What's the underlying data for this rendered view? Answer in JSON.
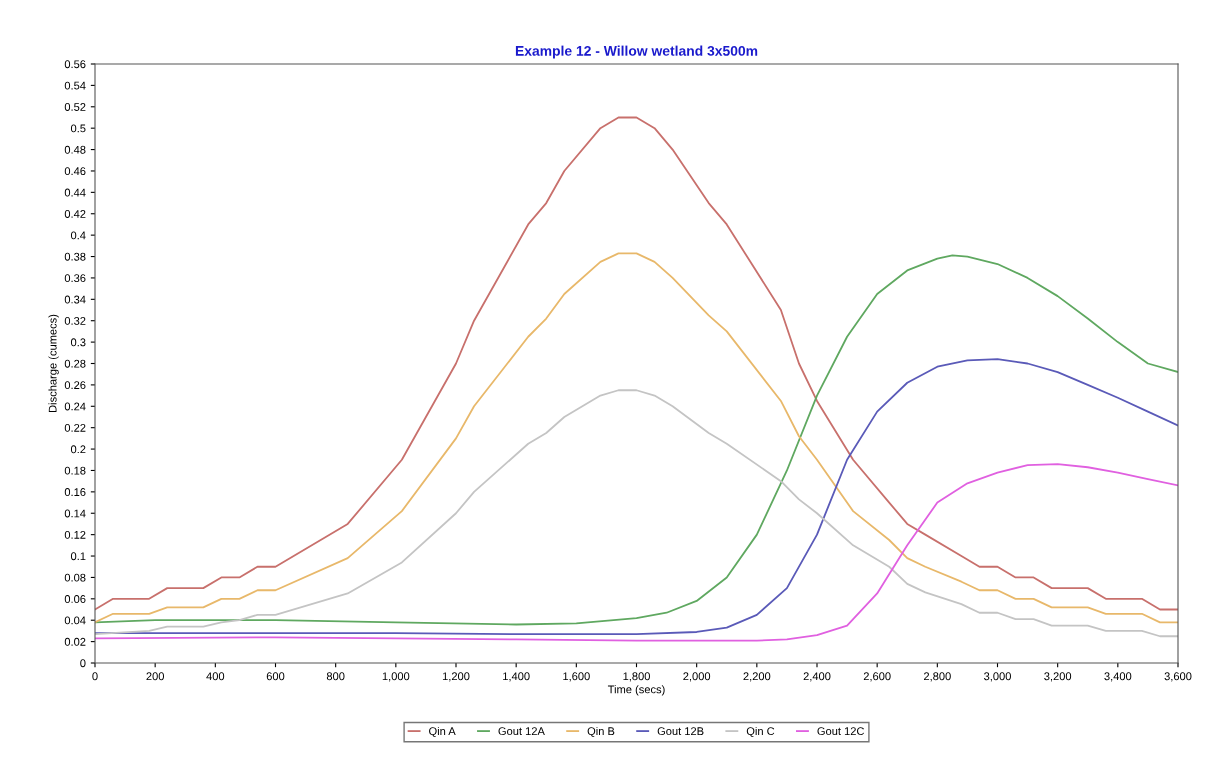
{
  "chart_data": {
    "type": "line",
    "title": "Example 12 - Willow wetland 3x500m",
    "xlabel": "Time (secs)",
    "ylabel": "Discharge (cumecs)",
    "xlim": [
      0,
      3600
    ],
    "xticks": [
      {
        "value": 0,
        "label": "0"
      },
      {
        "value": 200,
        "label": "200"
      },
      {
        "value": 400,
        "label": "400"
      },
      {
        "value": 600,
        "label": "600"
      },
      {
        "value": 800,
        "label": "800"
      },
      {
        "value": 1000,
        "label": "1,000"
      },
      {
        "value": 1200,
        "label": "1,200"
      },
      {
        "value": 1400,
        "label": "1,400"
      },
      {
        "value": 1600,
        "label": "1,600"
      },
      {
        "value": 1800,
        "label": "1,800"
      },
      {
        "value": 2000,
        "label": "2,000"
      },
      {
        "value": 2200,
        "label": "2,200"
      },
      {
        "value": 2400,
        "label": "2,400"
      },
      {
        "value": 2600,
        "label": "2,600"
      },
      {
        "value": 2800,
        "label": "2,800"
      },
      {
        "value": 3000,
        "label": "3,000"
      },
      {
        "value": 3200,
        "label": "3,200"
      },
      {
        "value": 3400,
        "label": "3,400"
      },
      {
        "value": 3600,
        "label": "3,600"
      }
    ],
    "ylim": [
      0,
      0.56
    ],
    "yticks": [
      0,
      0.02,
      0.04,
      0.06,
      0.08,
      0.1,
      0.12,
      0.14,
      0.16,
      0.18,
      0.2,
      0.22,
      0.24,
      0.26,
      0.28,
      0.3,
      0.32,
      0.34,
      0.36,
      0.38,
      0.4,
      0.42,
      0.44,
      0.46,
      0.48,
      0.5,
      0.52,
      0.54,
      0.56
    ],
    "grid": false,
    "legend": "bottom",
    "marker": "none",
    "line_style": "solid",
    "series": [
      {
        "name": "Qin A",
        "color": "#c8706c",
        "x": [
          0,
          60,
          180,
          240,
          360,
          420,
          480,
          540,
          600,
          840,
          1020,
          1200,
          1260,
          1440,
          1500,
          1560,
          1680,
          1740,
          1800,
          1860,
          1920,
          2040,
          2100,
          2280,
          2340,
          2400,
          2520,
          2640,
          2700,
          2760,
          2880,
          2940,
          3000,
          3060,
          3120,
          3180,
          3300,
          3360,
          3480,
          3540,
          3600
        ],
        "values": [
          0.05,
          0.06,
          0.06,
          0.07,
          0.07,
          0.08,
          0.08,
          0.09,
          0.09,
          0.13,
          0.19,
          0.28,
          0.32,
          0.41,
          0.43,
          0.46,
          0.5,
          0.51,
          0.51,
          0.5,
          0.48,
          0.43,
          0.41,
          0.33,
          0.28,
          0.245,
          0.19,
          0.15,
          0.13,
          0.12,
          0.1,
          0.09,
          0.09,
          0.08,
          0.08,
          0.07,
          0.07,
          0.06,
          0.06,
          0.05,
          0.05
        ]
      },
      {
        "name": "Gout 12A",
        "color": "#5fa860",
        "x": [
          0,
          200,
          600,
          1000,
          1400,
          1600,
          1800,
          1900,
          2000,
          2100,
          2200,
          2300,
          2400,
          2500,
          2600,
          2700,
          2800,
          2850,
          2900,
          3000,
          3100,
          3200,
          3300,
          3400,
          3500,
          3600
        ],
        "values": [
          0.038,
          0.04,
          0.04,
          0.038,
          0.036,
          0.037,
          0.042,
          0.047,
          0.058,
          0.08,
          0.12,
          0.18,
          0.25,
          0.305,
          0.345,
          0.367,
          0.378,
          0.381,
          0.38,
          0.373,
          0.36,
          0.343,
          0.322,
          0.3,
          0.28,
          0.272
        ]
      },
      {
        "name": "Qin B",
        "color": "#e8b86a",
        "x": [
          0,
          60,
          180,
          240,
          360,
          420,
          480,
          540,
          600,
          840,
          1020,
          1200,
          1260,
          1440,
          1500,
          1560,
          1680,
          1740,
          1800,
          1860,
          1920,
          2040,
          2100,
          2280,
          2340,
          2400,
          2520,
          2640,
          2700,
          2760,
          2880,
          2940,
          3000,
          3060,
          3120,
          3180,
          3300,
          3360,
          3480,
          3540,
          3600
        ],
        "values": [
          0.038,
          0.046,
          0.046,
          0.052,
          0.052,
          0.06,
          0.06,
          0.068,
          0.068,
          0.098,
          0.142,
          0.21,
          0.24,
          0.305,
          0.322,
          0.345,
          0.375,
          0.383,
          0.383,
          0.375,
          0.36,
          0.325,
          0.31,
          0.245,
          0.212,
          0.19,
          0.142,
          0.115,
          0.098,
          0.09,
          0.076,
          0.068,
          0.068,
          0.06,
          0.06,
          0.052,
          0.052,
          0.046,
          0.046,
          0.038,
          0.038
        ]
      },
      {
        "name": "Gout 12B",
        "color": "#5a5ab8",
        "x": [
          0,
          600,
          1000,
          1400,
          1800,
          2000,
          2100,
          2200,
          2300,
          2400,
          2500,
          2600,
          2700,
          2800,
          2900,
          3000,
          3100,
          3200,
          3300,
          3400,
          3500,
          3600
        ],
        "values": [
          0.028,
          0.028,
          0.028,
          0.027,
          0.027,
          0.029,
          0.033,
          0.045,
          0.07,
          0.12,
          0.19,
          0.235,
          0.262,
          0.277,
          0.283,
          0.284,
          0.28,
          0.272,
          0.26,
          0.248,
          0.235,
          0.222
        ]
      },
      {
        "name": "Qin C",
        "color": "#c4c4c4",
        "x": [
          0,
          180,
          240,
          360,
          420,
          480,
          540,
          600,
          840,
          1020,
          1200,
          1260,
          1440,
          1500,
          1560,
          1680,
          1740,
          1800,
          1860,
          1920,
          2040,
          2100,
          2280,
          2340,
          2400,
          2520,
          2640,
          2700,
          2760,
          2880,
          2940,
          3000,
          3060,
          3120,
          3180,
          3300,
          3360,
          3480,
          3540,
          3600
        ],
        "values": [
          0.027,
          0.03,
          0.034,
          0.034,
          0.038,
          0.04,
          0.045,
          0.045,
          0.065,
          0.094,
          0.14,
          0.16,
          0.205,
          0.215,
          0.23,
          0.25,
          0.255,
          0.255,
          0.25,
          0.24,
          0.215,
          0.205,
          0.17,
          0.153,
          0.14,
          0.11,
          0.09,
          0.074,
          0.066,
          0.055,
          0.047,
          0.047,
          0.041,
          0.041,
          0.035,
          0.035,
          0.03,
          0.03,
          0.025,
          0.025
        ]
      },
      {
        "name": "Gout 12C",
        "color": "#e060e0",
        "x": [
          0,
          600,
          1000,
          1400,
          1800,
          2200,
          2300,
          2400,
          2500,
          2600,
          2700,
          2800,
          2900,
          3000,
          3100,
          3200,
          3300,
          3400,
          3500,
          3600
        ],
        "values": [
          0.023,
          0.024,
          0.023,
          0.022,
          0.021,
          0.021,
          0.022,
          0.026,
          0.035,
          0.065,
          0.11,
          0.15,
          0.168,
          0.178,
          0.185,
          0.186,
          0.183,
          0.178,
          0.172,
          0.166
        ]
      }
    ]
  }
}
